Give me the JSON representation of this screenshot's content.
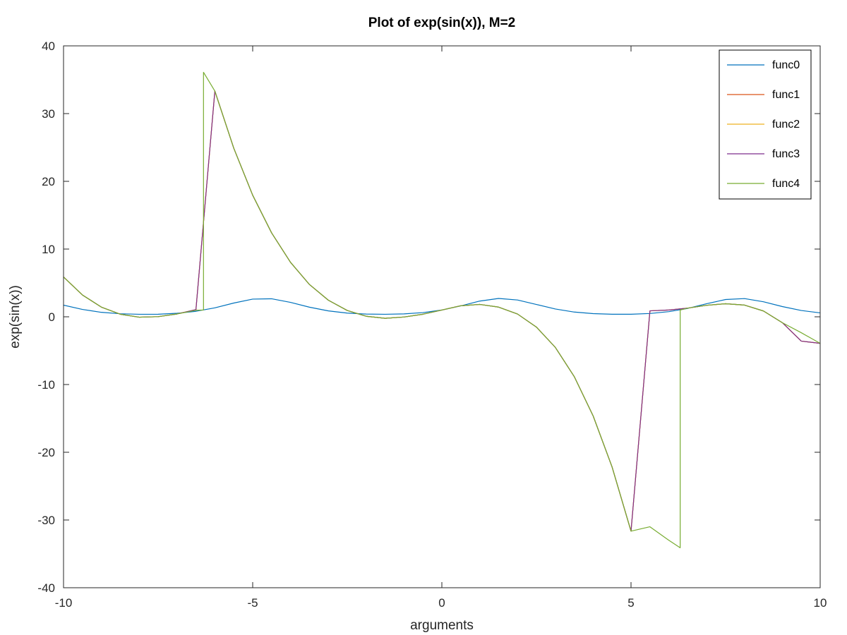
{
  "chart_data": {
    "type": "line",
    "title": "Plot of exp(sin(x)), M=2",
    "xlabel": "arguments",
    "ylabel": "exp(sin(x))",
    "xlim": [
      -10,
      10
    ],
    "ylim": [
      -40,
      40
    ],
    "x_ticks": [
      -10,
      -5,
      0,
      5,
      10
    ],
    "y_ticks": [
      -40,
      -30,
      -20,
      -10,
      0,
      10,
      20,
      30,
      40
    ],
    "x_tick_labels": [
      "-10",
      "-5",
      "0",
      "5",
      "10"
    ],
    "y_tick_labels": [
      "-40",
      "-30",
      "-20",
      "-10",
      "0",
      "10",
      "20",
      "30",
      "40"
    ],
    "grid": false,
    "box": true,
    "legend_placement": "top-right",
    "colors": {
      "func0": "#0072BD",
      "func1": "#D95319",
      "func2": "#EDB120",
      "func3": "#7E2F8E",
      "func4": "#77AC30",
      "axes": "#262626"
    },
    "series": [
      {
        "name": "func0",
        "x": [
          -10.0,
          -9.5,
          -9.0,
          -8.5,
          -8.0,
          -7.5,
          -7.0,
          -6.5,
          -6.0,
          -5.5,
          -5.0,
          -4.5,
          -4.0,
          -3.5,
          -3.0,
          -2.5,
          -2.0,
          -1.5,
          -1.0,
          -0.5,
          0.0,
          0.5,
          1.0,
          1.5,
          2.0,
          2.5,
          3.0,
          3.5,
          4.0,
          4.5,
          5.0,
          5.5,
          6.0,
          6.5,
          7.0,
          7.5,
          8.0,
          8.5,
          9.0,
          9.5,
          10.0
        ],
        "y": [
          1.72,
          1.09,
          0.66,
          0.45,
          0.37,
          0.38,
          0.52,
          0.81,
          1.32,
          2.03,
          2.61,
          2.66,
          2.13,
          1.42,
          0.87,
          0.55,
          0.4,
          0.37,
          0.43,
          0.62,
          1.0,
          1.61,
          2.32,
          2.71,
          2.48,
          1.82,
          1.15,
          0.7,
          0.47,
          0.38,
          0.38,
          0.49,
          0.76,
          1.24,
          1.93,
          2.55,
          2.69,
          2.22,
          1.51,
          0.93,
          0.58
        ]
      },
      {
        "name": "func1",
        "x": [
          -10.0,
          -9.5,
          -9.0,
          -8.5,
          -8.0,
          -7.5,
          -7.0,
          -6.5,
          -6.0,
          -5.5,
          -5.0,
          -4.5,
          -4.0,
          -3.5,
          -3.0,
          -2.5,
          -2.0,
          -1.5,
          -1.0,
          -0.5,
          0.0,
          0.5,
          1.0,
          1.5,
          2.0,
          2.5,
          3.0,
          3.5,
          4.0,
          4.5,
          5.0,
          5.5,
          6.0,
          6.5,
          7.0,
          7.5,
          8.0,
          8.5,
          9.0,
          9.5,
          10.0
        ],
        "y": [
          5.88,
          3.22,
          1.43,
          0.38,
          -0.06,
          0.02,
          0.42,
          1.06,
          33.33,
          24.89,
          17.95,
          12.39,
          8.04,
          4.77,
          2.45,
          0.93,
          0.08,
          -0.22,
          -0.03,
          0.38,
          1.0,
          1.63,
          1.83,
          1.43,
          0.41,
          -1.52,
          -4.52,
          -8.83,
          -14.65,
          -22.18,
          -31.65,
          0.88,
          1.0,
          1.28,
          1.7,
          1.93,
          1.73,
          0.86,
          -0.87,
          -3.59,
          -3.92
        ]
      },
      {
        "name": "func2",
        "x": [
          -10.0,
          -9.5,
          -9.0,
          -8.5,
          -8.0,
          -7.5,
          -7.0,
          -6.5,
          -6.0,
          -5.5,
          -5.0,
          -4.5,
          -4.0,
          -3.5,
          -3.0,
          -2.5,
          -2.0,
          -1.5,
          -1.0,
          -0.5,
          0.0,
          0.5,
          1.0,
          1.5,
          2.0,
          2.5,
          3.0,
          3.5,
          4.0,
          4.5,
          5.0,
          5.5,
          6.0,
          6.5,
          7.0,
          7.5,
          8.0,
          8.5,
          9.0,
          9.5,
          10.0
        ],
        "y": [
          5.88,
          3.22,
          1.43,
          0.38,
          -0.06,
          0.02,
          0.42,
          1.06,
          33.33,
          24.89,
          17.95,
          12.39,
          8.04,
          4.77,
          2.45,
          0.93,
          0.08,
          -0.22,
          -0.03,
          0.38,
          1.0,
          1.63,
          1.83,
          1.43,
          0.41,
          -1.52,
          -4.52,
          -8.83,
          -14.65,
          -22.18,
          -31.65,
          0.88,
          1.0,
          1.28,
          1.7,
          1.93,
          1.73,
          0.86,
          -0.87,
          -3.59,
          -3.92
        ]
      },
      {
        "name": "func3",
        "x": [
          -10.0,
          -9.5,
          -9.0,
          -8.5,
          -8.0,
          -7.5,
          -7.0,
          -6.5,
          -6.0,
          -5.5,
          -5.0,
          -4.5,
          -4.0,
          -3.5,
          -3.0,
          -2.5,
          -2.0,
          -1.5,
          -1.0,
          -0.5,
          0.0,
          0.5,
          1.0,
          1.5,
          2.0,
          2.5,
          3.0,
          3.5,
          4.0,
          4.5,
          5.0,
          5.5,
          6.0,
          6.5,
          7.0,
          7.5,
          8.0,
          8.5,
          9.0,
          9.5,
          10.0
        ],
        "y": [
          5.88,
          3.22,
          1.43,
          0.38,
          -0.06,
          0.02,
          0.42,
          1.06,
          33.33,
          24.89,
          17.95,
          12.39,
          8.04,
          4.77,
          2.45,
          0.93,
          0.08,
          -0.22,
          -0.03,
          0.38,
          1.0,
          1.63,
          1.83,
          1.43,
          0.41,
          -1.52,
          -4.52,
          -8.83,
          -14.65,
          -22.18,
          -31.65,
          0.88,
          1.0,
          1.28,
          1.7,
          1.93,
          1.73,
          0.86,
          -0.87,
          -3.59,
          -3.92
        ]
      },
      {
        "name": "func4",
        "x": [
          -10.0,
          -9.5,
          -9.0,
          -8.5,
          -8.0,
          -7.5,
          -7.0,
          -6.5,
          -6.3,
          -6.3,
          -6.0,
          -5.5,
          -5.0,
          -4.5,
          -4.0,
          -3.5,
          -3.0,
          -2.5,
          -2.0,
          -1.5,
          -1.0,
          -0.5,
          0.0,
          0.5,
          1.0,
          1.5,
          2.0,
          2.5,
          3.0,
          3.5,
          4.0,
          4.5,
          5.0,
          5.5,
          6.0,
          6.3,
          6.3,
          6.5,
          7.0,
          7.5,
          8.0,
          8.5,
          9.0,
          9.5,
          10.0
        ],
        "y": [
          5.88,
          3.22,
          1.43,
          0.38,
          -0.06,
          0.02,
          0.42,
          0.96,
          1.0,
          36.1,
          33.33,
          24.89,
          17.95,
          12.39,
          8.04,
          4.77,
          2.45,
          0.93,
          0.08,
          -0.22,
          -0.03,
          0.38,
          1.0,
          1.63,
          1.83,
          1.43,
          0.41,
          -1.52,
          -4.52,
          -8.83,
          -14.65,
          -22.18,
          -31.65,
          -31.0,
          -33.0,
          -34.1,
          1.0,
          1.28,
          1.7,
          1.93,
          1.73,
          0.86,
          -0.87,
          -2.35,
          -3.92
        ]
      }
    ]
  }
}
